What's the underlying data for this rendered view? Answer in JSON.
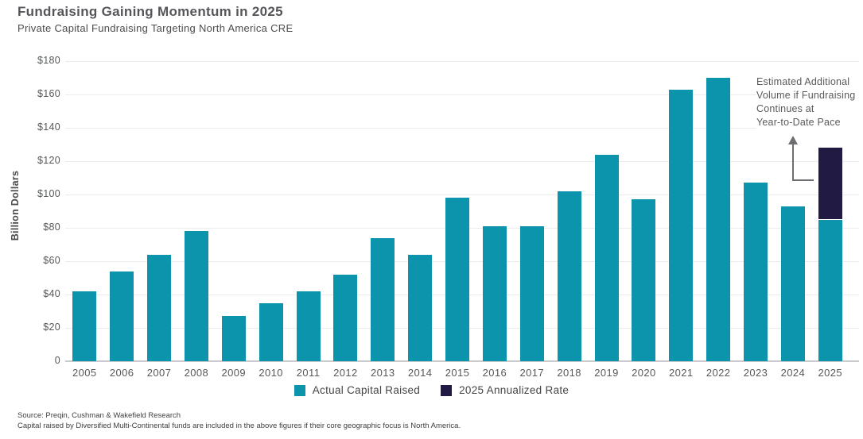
{
  "title": "Fundraising Gaining Momentum in 2025",
  "subtitle": "Private Capital Fundraising Targeting North America CRE",
  "colors": {
    "teal": "#0B94AB",
    "navy": "#211A42",
    "grid": "#ECECED",
    "axis": "#C9CACB",
    "arrow": "#6D6E71",
    "text": "#57585A"
  },
  "chart_data": {
    "type": "bar",
    "stacked": true,
    "title": "Fundraising Gaining Momentum in 2025",
    "subtitle": "Private Capital Fundraising Targeting North America CRE",
    "xlabel": "",
    "ylabel": "Billion Dollars",
    "ylim": [
      0,
      180
    ],
    "grid": "horizontal",
    "legend_position": "bottom",
    "categories": [
      "2005",
      "2006",
      "2007",
      "2008",
      "2009",
      "2010",
      "2011",
      "2012",
      "2013",
      "2014",
      "2015",
      "2016",
      "2017",
      "2018",
      "2019",
      "2020",
      "2021",
      "2022",
      "2023",
      "2024",
      "2025"
    ],
    "series": [
      {
        "name": "Actual Capital Raised",
        "color_key": "teal",
        "values": [
          42,
          54,
          64,
          78,
          27,
          35,
          42,
          52,
          74,
          64,
          98,
          81,
          81,
          102,
          124,
          97,
          163,
          170,
          107,
          93,
          85
        ]
      },
      {
        "name": "2025 Annualized Rate",
        "color_key": "navy",
        "values": [
          0,
          0,
          0,
          0,
          0,
          0,
          0,
          0,
          0,
          0,
          0,
          0,
          0,
          0,
          0,
          0,
          0,
          0,
          0,
          0,
          43
        ]
      }
    ],
    "yticks": [
      {
        "label": "$180",
        "value": 180
      },
      {
        "label": "$160",
        "value": 160
      },
      {
        "label": "$140",
        "value": 140
      },
      {
        "label": "$120",
        "value": 120
      },
      {
        "label": "$100",
        "value": 100
      },
      {
        "label": "$80",
        "value": 80
      },
      {
        "label": "$60",
        "value": 60
      },
      {
        "label": "$40",
        "value": 40
      },
      {
        "label": "$20",
        "value": 20
      },
      {
        "label": "0",
        "value": 0
      }
    ],
    "annotation": {
      "lines": [
        "Estimated Additional",
        "Volume if Fundraising",
        "Continues at",
        "Year-to-Date Pace"
      ],
      "target_category": "2025"
    }
  },
  "legend": [
    {
      "label": "Actual Capital Raised",
      "color_key": "teal"
    },
    {
      "label": "2025 Annualized Rate",
      "color_key": "navy"
    }
  ],
  "footer": {
    "line1": "Source: Preqin, Cushman & Wakefield Research",
    "line2": "Capital raised by Diversified Multi-Continental funds are included in the above figures if their core geographic focus is North America."
  }
}
